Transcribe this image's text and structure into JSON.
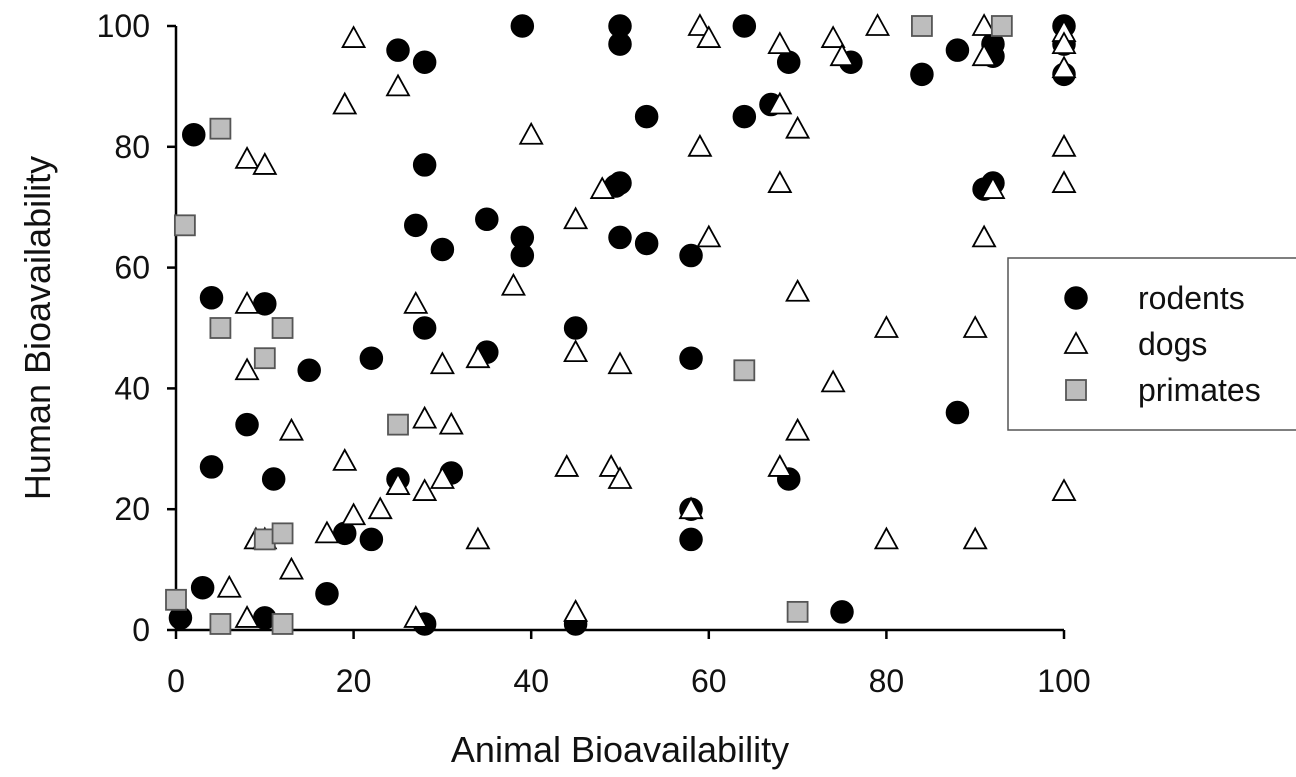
{
  "chart_data": {
    "type": "scatter",
    "title": "",
    "xlabel": "Animal Bioavailability",
    "ylabel": "Human Bioavailability",
    "xlim": [
      0,
      100
    ],
    "ylim": [
      0,
      100
    ],
    "xticks": [
      "0",
      "20",
      "40",
      "60",
      "80",
      "100"
    ],
    "yticks": [
      "0",
      "20",
      "40",
      "60",
      "80",
      "100"
    ],
    "grid": false,
    "legend_position": "right",
    "series": [
      {
        "name": "rodents",
        "marker": "circle",
        "fill": "#000000",
        "stroke": "#000000",
        "points": [
          [
            0.5,
            2
          ],
          [
            2,
            82
          ],
          [
            3,
            7
          ],
          [
            4,
            55
          ],
          [
            4,
            27
          ],
          [
            8,
            34
          ],
          [
            10,
            54
          ],
          [
            10,
            2
          ],
          [
            11,
            25
          ],
          [
            15,
            43
          ],
          [
            17,
            6
          ],
          [
            19,
            16
          ],
          [
            22,
            15
          ],
          [
            22,
            45
          ],
          [
            25,
            96
          ],
          [
            25,
            25
          ],
          [
            28,
            94
          ],
          [
            28,
            77
          ],
          [
            27,
            67
          ],
          [
            28,
            50
          ],
          [
            28,
            1
          ],
          [
            30,
            63
          ],
          [
            31,
            26
          ],
          [
            35,
            68
          ],
          [
            35,
            46
          ],
          [
            39,
            100
          ],
          [
            39,
            65
          ],
          [
            39,
            62
          ],
          [
            45,
            50
          ],
          [
            45,
            1
          ],
          [
            50,
            100
          ],
          [
            50,
            97
          ],
          [
            50,
            74
          ],
          [
            49.5,
            73.5
          ],
          [
            50,
            65
          ],
          [
            53,
            85
          ],
          [
            53,
            64
          ],
          [
            58,
            62
          ],
          [
            58,
            45
          ],
          [
            58,
            20
          ],
          [
            58,
            15
          ],
          [
            64,
            100
          ],
          [
            64,
            85
          ],
          [
            67,
            87
          ],
          [
            69,
            94
          ],
          [
            69,
            25
          ],
          [
            75,
            3
          ],
          [
            76,
            94
          ],
          [
            84,
            92
          ],
          [
            88,
            96
          ],
          [
            88,
            36
          ],
          [
            91,
            73
          ],
          [
            92,
            74
          ],
          [
            92,
            95
          ],
          [
            92,
            97
          ],
          [
            100,
            100
          ],
          [
            100,
            97
          ],
          [
            100,
            92
          ]
        ]
      },
      {
        "name": "dogs",
        "marker": "triangle",
        "fill": "#ffffff",
        "stroke": "#000000",
        "points": [
          [
            6,
            7
          ],
          [
            8,
            78
          ],
          [
            8,
            54
          ],
          [
            8,
            43
          ],
          [
            8,
            2
          ],
          [
            9,
            15
          ],
          [
            10,
            77
          ],
          [
            10,
            15
          ],
          [
            13,
            33
          ],
          [
            13,
            10
          ],
          [
            17,
            16
          ],
          [
            19,
            87
          ],
          [
            19,
            28
          ],
          [
            20,
            98
          ],
          [
            20,
            19
          ],
          [
            23,
            20
          ],
          [
            25,
            90
          ],
          [
            25,
            24
          ],
          [
            27,
            54
          ],
          [
            27,
            2
          ],
          [
            28,
            35
          ],
          [
            28,
            23
          ],
          [
            30,
            44
          ],
          [
            30,
            25
          ],
          [
            31,
            34
          ],
          [
            34,
            45
          ],
          [
            34,
            15
          ],
          [
            38,
            57
          ],
          [
            40,
            82
          ],
          [
            44,
            27
          ],
          [
            45,
            68
          ],
          [
            45,
            46
          ],
          [
            45,
            3
          ],
          [
            48,
            73
          ],
          [
            49,
            27
          ],
          [
            50,
            44
          ],
          [
            50,
            25
          ],
          [
            58,
            20
          ],
          [
            59,
            100
          ],
          [
            59,
            80
          ],
          [
            60,
            98
          ],
          [
            60,
            65
          ],
          [
            68,
            97
          ],
          [
            68,
            87
          ],
          [
            68,
            74
          ],
          [
            68,
            27
          ],
          [
            70,
            83
          ],
          [
            70,
            56
          ],
          [
            70,
            33
          ],
          [
            74,
            98
          ],
          [
            74,
            41
          ],
          [
            75,
            95
          ],
          [
            79,
            100
          ],
          [
            80,
            50
          ],
          [
            80,
            15
          ],
          [
            90,
            50
          ],
          [
            90,
            15
          ],
          [
            91,
            100
          ],
          [
            91,
            95
          ],
          [
            91,
            65
          ],
          [
            92,
            73
          ],
          [
            100,
            99
          ],
          [
            100,
            97
          ],
          [
            100,
            93
          ],
          [
            100,
            80
          ],
          [
            100,
            74
          ],
          [
            100,
            23
          ]
        ]
      },
      {
        "name": "primates",
        "marker": "square",
        "fill": "#bdbdbd",
        "stroke": "#555555",
        "points": [
          [
            0,
            5
          ],
          [
            1,
            67
          ],
          [
            5,
            50
          ],
          [
            5,
            1
          ],
          [
            5,
            83
          ],
          [
            10,
            45
          ],
          [
            10,
            15
          ],
          [
            12,
            50
          ],
          [
            12,
            16
          ],
          [
            12,
            1
          ],
          [
            25,
            34
          ],
          [
            64,
            43
          ],
          [
            70,
            3
          ],
          [
            84,
            100
          ],
          [
            93,
            100
          ]
        ]
      }
    ]
  }
}
